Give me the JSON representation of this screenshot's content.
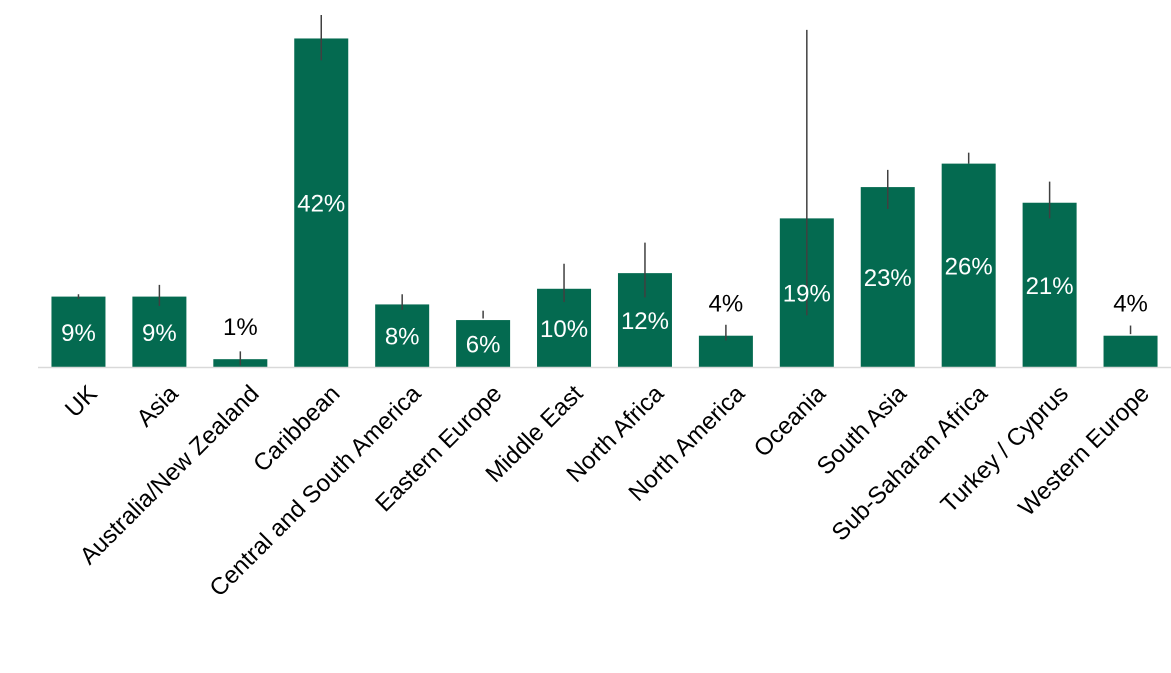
{
  "chart_data": {
    "type": "bar",
    "categories": [
      "UK",
      "Asia",
      "Australia/New Zealand",
      "Caribbean",
      "Central and South America",
      "Eastern Europe",
      "Middle East",
      "North Africa",
      "North America",
      "Oceania",
      "South Asia",
      "Sub-Saharan Africa",
      "Turkey / Cyprus",
      "Western Europe"
    ],
    "values": [
      9,
      9,
      1,
      42,
      8,
      6,
      10,
      12,
      4,
      19,
      23,
      26,
      21,
      4
    ],
    "data_labels": [
      "9%",
      "9%",
      "1%",
      "42%",
      "8%",
      "6%",
      "10%",
      "12%",
      "4%",
      "19%",
      "23%",
      "26%",
      "21%",
      "4%"
    ],
    "error_bars": [
      [
        8.7,
        9.3
      ],
      [
        7.8,
        10.5
      ],
      [
        0.2,
        2.0
      ],
      [
        39.2,
        45.0
      ],
      [
        7.3,
        9.3
      ],
      [
        6.2,
        7.2
      ],
      [
        8.3,
        13.2
      ],
      [
        8.9,
        15.9
      ],
      [
        3.4,
        5.4
      ],
      [
        6.6,
        43.1
      ],
      [
        20.2,
        25.2
      ],
      [
        26.0,
        27.4
      ],
      [
        19.0,
        23.7
      ],
      [
        4.2,
        5.3
      ]
    ],
    "ylim": [
      0,
      45
    ],
    "grid": false,
    "legend": "none",
    "bar_color": "#046A50",
    "error_color": "#404040",
    "axis_color": "#D9D9D9",
    "label_inside_color": "#ffffff",
    "label_outside_color": "#000000"
  }
}
